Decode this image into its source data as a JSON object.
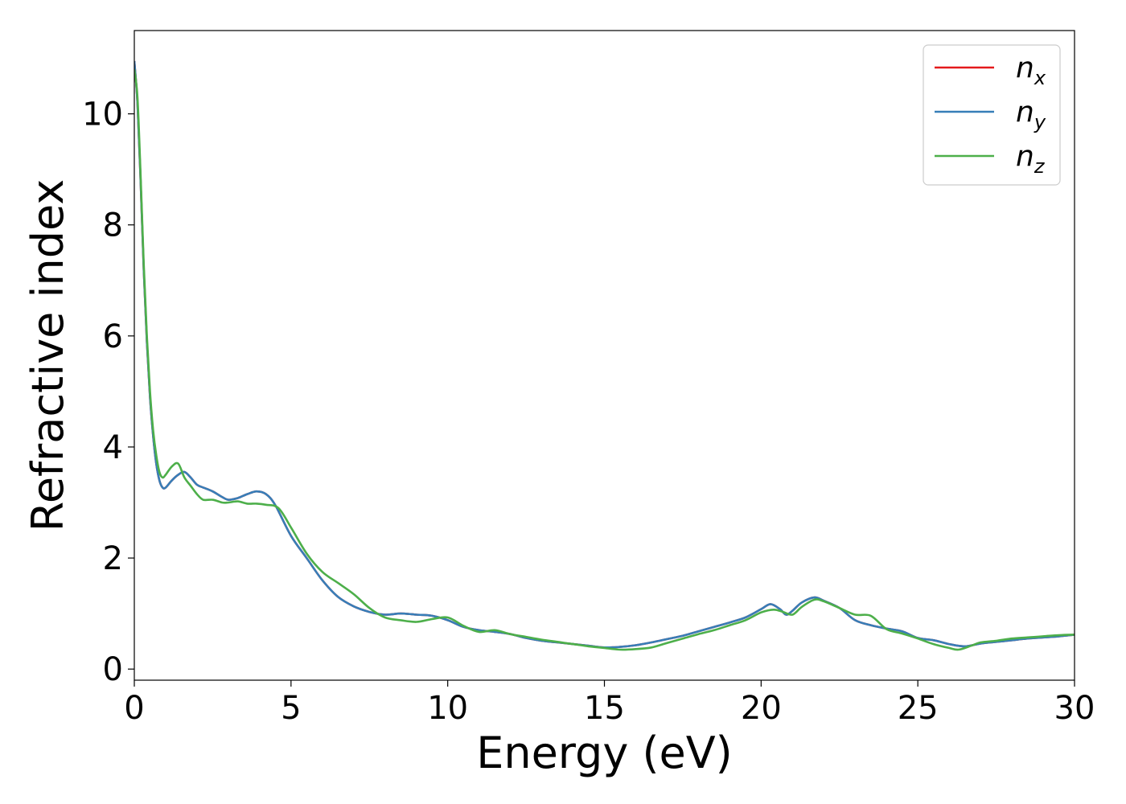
{
  "chart_data": {
    "type": "line",
    "xlabel": "Energy (eV)",
    "ylabel": "Refractive index",
    "xlim": [
      0,
      30
    ],
    "ylim": [
      -0.2,
      11.5
    ],
    "xticks": [
      0,
      5,
      10,
      15,
      20,
      25,
      30
    ],
    "yticks": [
      0,
      2,
      4,
      6,
      8,
      10
    ],
    "grid": false,
    "legend_position": "top-right",
    "series": [
      {
        "name": "n",
        "subscript": "x",
        "color": "#e41a1c",
        "x": [
          0,
          0.1,
          0.2,
          0.3,
          0.4,
          0.5,
          0.6,
          0.7,
          0.8,
          0.9,
          1.0,
          1.2,
          1.4,
          1.6,
          1.8,
          2.0,
          2.2,
          2.5,
          2.8,
          3.0,
          3.3,
          3.6,
          3.9,
          4.2,
          4.5,
          5.0,
          5.5,
          6.0,
          6.5,
          7.0,
          7.5,
          8.0,
          8.5,
          9.0,
          9.5,
          10.0,
          10.5,
          11.0,
          11.5,
          12.0,
          12.5,
          13.0,
          13.5,
          14.0,
          14.5,
          15.0,
          15.5,
          16.0,
          16.5,
          17.0,
          17.5,
          18.0,
          18.5,
          19.0,
          19.5,
          20.0,
          20.3,
          20.6,
          20.8,
          21.0,
          21.3,
          21.7,
          22.0,
          22.5,
          23.0,
          23.5,
          24.0,
          24.5,
          25.0,
          25.5,
          26.0,
          26.5,
          27.0,
          27.5,
          28.0,
          28.5,
          29.0,
          29.5,
          30.0
        ],
        "values": [
          10.95,
          10.2,
          8.8,
          7.2,
          5.9,
          4.9,
          4.2,
          3.7,
          3.4,
          3.27,
          3.27,
          3.4,
          3.5,
          3.55,
          3.45,
          3.32,
          3.27,
          3.2,
          3.1,
          3.05,
          3.08,
          3.15,
          3.2,
          3.15,
          2.95,
          2.4,
          2.0,
          1.6,
          1.3,
          1.13,
          1.03,
          0.98,
          1.0,
          0.98,
          0.96,
          0.88,
          0.76,
          0.7,
          0.67,
          0.63,
          0.56,
          0.51,
          0.48,
          0.45,
          0.42,
          0.39,
          0.4,
          0.43,
          0.48,
          0.54,
          0.6,
          0.68,
          0.76,
          0.84,
          0.93,
          1.08,
          1.17,
          1.08,
          0.98,
          1.05,
          1.2,
          1.29,
          1.23,
          1.1,
          0.88,
          0.79,
          0.73,
          0.68,
          0.56,
          0.52,
          0.45,
          0.41,
          0.46,
          0.49,
          0.52,
          0.55,
          0.57,
          0.59,
          0.62
        ]
      },
      {
        "name": "n",
        "subscript": "y",
        "color": "#377eb8",
        "x": [
          0,
          0.1,
          0.2,
          0.3,
          0.4,
          0.5,
          0.6,
          0.7,
          0.8,
          0.9,
          1.0,
          1.2,
          1.4,
          1.6,
          1.8,
          2.0,
          2.2,
          2.5,
          2.8,
          3.0,
          3.3,
          3.6,
          3.9,
          4.2,
          4.5,
          5.0,
          5.5,
          6.0,
          6.5,
          7.0,
          7.5,
          8.0,
          8.5,
          9.0,
          9.5,
          10.0,
          10.5,
          11.0,
          11.5,
          12.0,
          12.5,
          13.0,
          13.5,
          14.0,
          14.5,
          15.0,
          15.5,
          16.0,
          16.5,
          17.0,
          17.5,
          18.0,
          18.5,
          19.0,
          19.5,
          20.0,
          20.3,
          20.6,
          20.8,
          21.0,
          21.3,
          21.7,
          22.0,
          22.5,
          23.0,
          23.5,
          24.0,
          24.5,
          25.0,
          25.5,
          26.0,
          26.5,
          27.0,
          27.5,
          28.0,
          28.5,
          29.0,
          29.5,
          30.0
        ],
        "values": [
          10.95,
          10.2,
          8.8,
          7.2,
          5.9,
          4.9,
          4.2,
          3.7,
          3.4,
          3.27,
          3.27,
          3.4,
          3.5,
          3.55,
          3.45,
          3.32,
          3.27,
          3.2,
          3.1,
          3.05,
          3.08,
          3.15,
          3.2,
          3.15,
          2.95,
          2.4,
          2.0,
          1.6,
          1.3,
          1.13,
          1.03,
          0.98,
          1.0,
          0.98,
          0.96,
          0.88,
          0.76,
          0.7,
          0.67,
          0.63,
          0.56,
          0.51,
          0.48,
          0.45,
          0.42,
          0.39,
          0.4,
          0.43,
          0.48,
          0.54,
          0.6,
          0.68,
          0.76,
          0.84,
          0.93,
          1.08,
          1.17,
          1.08,
          0.98,
          1.05,
          1.2,
          1.29,
          1.23,
          1.1,
          0.88,
          0.79,
          0.73,
          0.68,
          0.56,
          0.52,
          0.45,
          0.41,
          0.46,
          0.49,
          0.52,
          0.55,
          0.57,
          0.59,
          0.62
        ]
      },
      {
        "name": "n",
        "subscript": "z",
        "color": "#4daf4a",
        "x": [
          0,
          0.1,
          0.2,
          0.3,
          0.4,
          0.5,
          0.6,
          0.7,
          0.8,
          0.9,
          1.0,
          1.2,
          1.4,
          1.6,
          1.8,
          2.0,
          2.2,
          2.5,
          2.8,
          3.0,
          3.3,
          3.6,
          3.9,
          4.2,
          4.6,
          5.0,
          5.5,
          6.0,
          6.5,
          7.0,
          7.5,
          8.0,
          8.5,
          9.0,
          9.5,
          10.0,
          10.5,
          11.0,
          11.5,
          12.0,
          12.5,
          13.0,
          13.5,
          14.0,
          14.5,
          15.0,
          15.5,
          16.0,
          16.5,
          17.0,
          17.5,
          18.0,
          18.5,
          19.0,
          19.5,
          20.0,
          20.4,
          20.7,
          21.0,
          21.3,
          21.7,
          22.0,
          22.5,
          23.0,
          23.5,
          24.0,
          24.5,
          25.0,
          25.5,
          26.0,
          26.3,
          26.7,
          27.0,
          27.5,
          28.0,
          28.5,
          29.0,
          29.5,
          30.0
        ],
        "values": [
          10.8,
          10.3,
          8.9,
          7.3,
          6.0,
          5.0,
          4.3,
          3.85,
          3.55,
          3.45,
          3.5,
          3.65,
          3.7,
          3.45,
          3.3,
          3.15,
          3.05,
          3.05,
          3.0,
          3.0,
          3.02,
          2.98,
          2.98,
          2.96,
          2.9,
          2.55,
          2.08,
          1.75,
          1.55,
          1.35,
          1.1,
          0.93,
          0.88,
          0.85,
          0.9,
          0.93,
          0.78,
          0.67,
          0.7,
          0.63,
          0.58,
          0.53,
          0.49,
          0.45,
          0.41,
          0.38,
          0.35,
          0.36,
          0.39,
          0.47,
          0.55,
          0.63,
          0.7,
          0.79,
          0.88,
          1.02,
          1.07,
          1.03,
          0.98,
          1.12,
          1.25,
          1.22,
          1.1,
          0.98,
          0.96,
          0.72,
          0.64,
          0.55,
          0.45,
          0.38,
          0.35,
          0.42,
          0.48,
          0.51,
          0.55,
          0.57,
          0.59,
          0.61,
          0.62
        ]
      }
    ]
  }
}
